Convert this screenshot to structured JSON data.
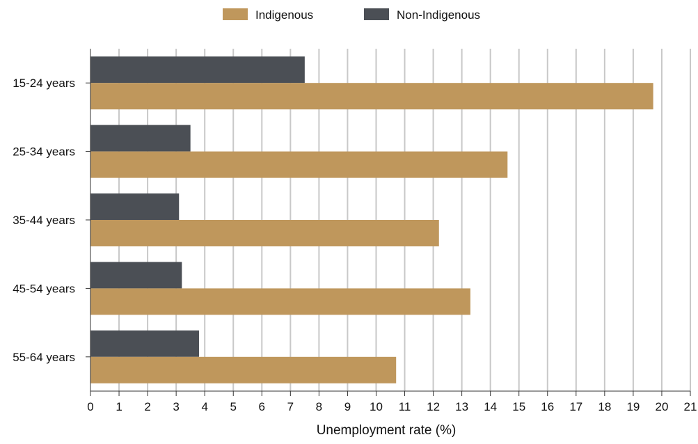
{
  "chart_data": {
    "type": "bar",
    "orientation": "horizontal",
    "categories": [
      "15-24 years",
      "25-34 years",
      "35-44 years",
      "45-54 years",
      "55-64 years"
    ],
    "series": [
      {
        "name": "Non-Indigenous",
        "color": "#4b4f55",
        "values": [
          7.5,
          3.5,
          3.1,
          3.2,
          3.8
        ]
      },
      {
        "name": "Indigenous",
        "color": "#bf975c",
        "values": [
          19.7,
          14.6,
          12.2,
          13.3,
          10.7
        ]
      }
    ],
    "legend": [
      {
        "label": "Indigenous",
        "color": "#bf975c"
      },
      {
        "label": "Non-Indigenous",
        "color": "#4b4f55"
      }
    ],
    "xlabel": "Unemployment rate (%)",
    "ylabel": "",
    "xlim": [
      0,
      21
    ],
    "xticks": [
      "0",
      "1",
      "2",
      "3",
      "4",
      "5",
      "6",
      "7",
      "8",
      "9",
      "10",
      "11",
      "12",
      "13",
      "14",
      "15",
      "16",
      "17",
      "18",
      "19",
      "20",
      "21"
    ],
    "grid": "vertical",
    "legend_position": "top-center"
  }
}
